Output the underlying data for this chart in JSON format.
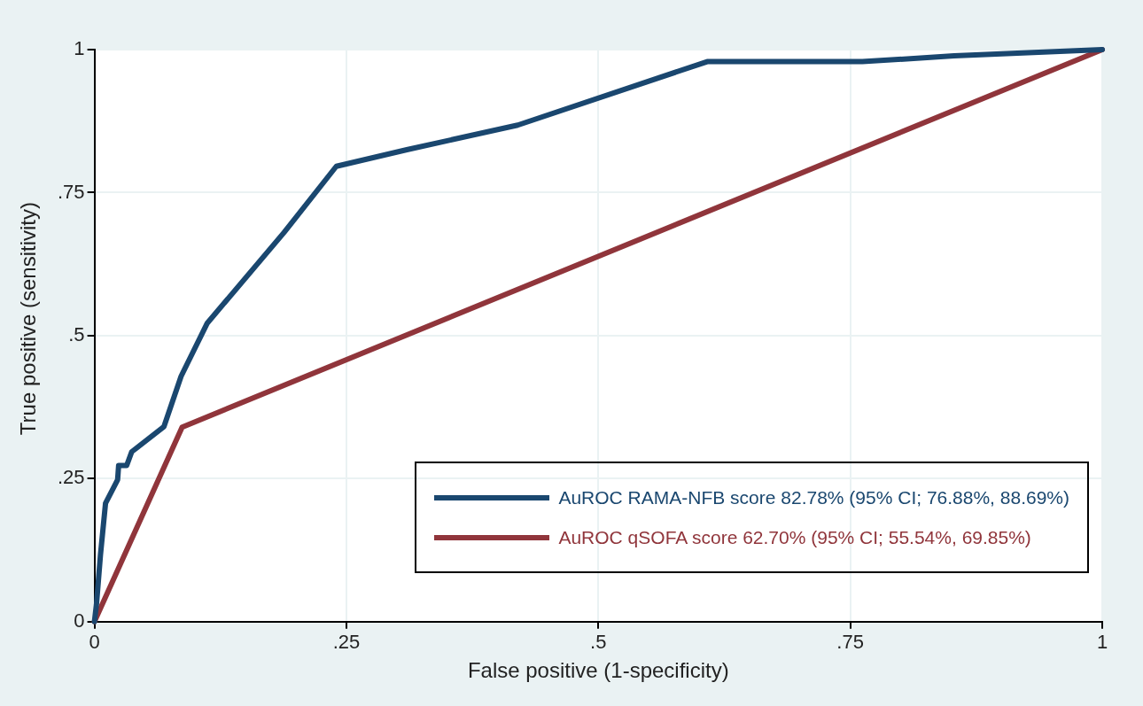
{
  "chart_data": {
    "type": "line",
    "xlabel": "False positive (1-specificity)",
    "ylabel": "True positive (sensitivity)",
    "xlim": [
      0,
      1
    ],
    "ylim": [
      0,
      1
    ],
    "xticks": [
      {
        "value": 0,
        "label": "0"
      },
      {
        "value": 0.25,
        "label": ".25"
      },
      {
        "value": 0.5,
        "label": ".5"
      },
      {
        "value": 0.75,
        "label": ".75"
      },
      {
        "value": 1,
        "label": "1"
      }
    ],
    "yticks": [
      {
        "value": 0,
        "label": "0"
      },
      {
        "value": 0.25,
        "label": ".25"
      },
      {
        "value": 0.5,
        "label": ".5"
      },
      {
        "value": 0.75,
        "label": ".75"
      },
      {
        "value": 1,
        "label": "1"
      }
    ],
    "grid": true,
    "legend": "bottom right",
    "marker": "none",
    "line_style": "solid",
    "series": [
      {
        "name": "AuROC RAMA-NFB score 82.78% (95% CI; 76.88%, 88.69%)",
        "color": "#1a476f",
        "x": [
          0,
          0.002,
          0.006,
          0.011,
          0.023,
          0.024,
          0.032,
          0.037,
          0.069,
          0.086,
          0.112,
          0.188,
          0.24,
          0.31,
          0.42,
          0.608,
          0.762,
          0.853,
          1
        ],
        "values": [
          0,
          0.03,
          0.117,
          0.207,
          0.248,
          0.273,
          0.273,
          0.297,
          0.341,
          0.429,
          0.522,
          0.68,
          0.796,
          0.825,
          0.868,
          0.979,
          0.979,
          0.989,
          1
        ]
      },
      {
        "name": "AuROC qSOFA score 62.70% (95% CI; 55.54%, 69.85%)",
        "color": "#90353b",
        "x": [
          0,
          0.087,
          1
        ],
        "values": [
          0,
          0.34,
          1
        ]
      }
    ]
  }
}
